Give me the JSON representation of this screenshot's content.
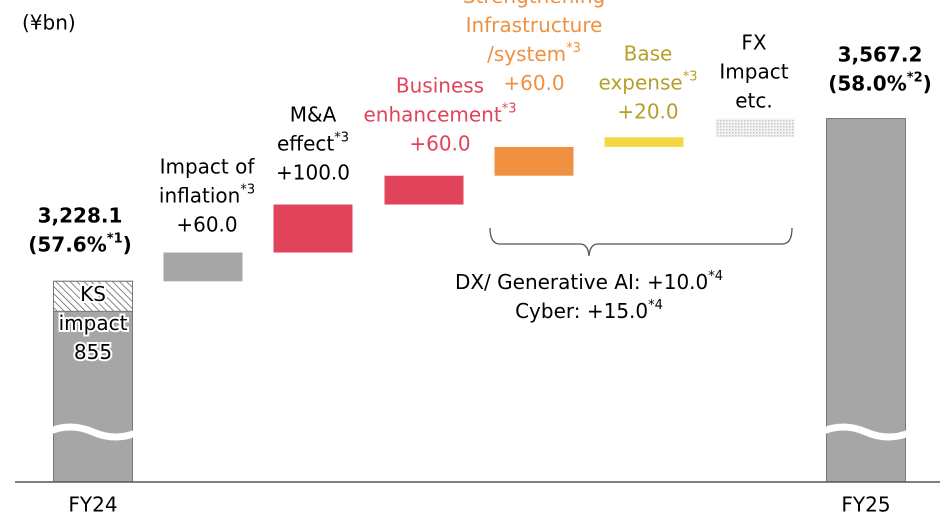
{
  "chart_data": {
    "type": "waterfall",
    "unit_label": "(¥bn)",
    "categories": [
      "FY24",
      null,
      null,
      null,
      null,
      null,
      null,
      "FY25"
    ],
    "values": [
      3228.1,
      60,
      100,
      60,
      60,
      20,
      39.1,
      3567.2
    ],
    "value_labels": [
      "3,228.1",
      "+60.0",
      "+100.0",
      "+60.0",
      "+60.0",
      "+20.0",
      null,
      "3,567.2"
    ],
    "bar_labels": [
      [
        [
          "(57.6%",
          "*1",
          ")"
        ]
      ],
      [
        [
          "Impact of"
        ],
        [
          "inflation",
          "*3"
        ]
      ],
      [
        [
          "M&A"
        ],
        [
          "effect",
          "*3"
        ]
      ],
      [
        [
          "Business"
        ],
        [
          "enhancement",
          "*3"
        ]
      ],
      [
        [
          "Strengthening"
        ],
        [
          "Infrastructure"
        ],
        [
          "/system",
          "*3"
        ]
      ],
      [
        [
          "Base"
        ],
        [
          "expense",
          "*3"
        ]
      ],
      [
        [
          "FX"
        ],
        [
          "Impact"
        ],
        [
          "etc."
        ]
      ],
      [
        [
          "(58.0%",
          "*2",
          ")"
        ]
      ]
    ],
    "colors": [
      "#a6a6a6",
      "#a6a6a6",
      "#e0435a",
      "#e0435a",
      "#ef9140",
      "#f5d742",
      "#c8c8c8",
      "#a6a6a6"
    ],
    "fill_styles": [
      "solid",
      "solid",
      "solid",
      "solid",
      "solid",
      "solid",
      "dots",
      "solid"
    ],
    "label_colors": [
      "#000000",
      "#000000",
      "#000000",
      "#e0435a",
      "#ef9140",
      "#b5a02b",
      "#000000",
      "#000000"
    ],
    "ks_annotation": [
      "KS",
      "impact",
      "855"
    ],
    "bracket_annotation": [
      [
        "DX/ Generative AI: +10.0",
        "*4"
      ],
      [
        "Cyber: +15.0",
        "*4"
      ]
    ],
    "ylim": [
      2810,
      3620
    ]
  }
}
